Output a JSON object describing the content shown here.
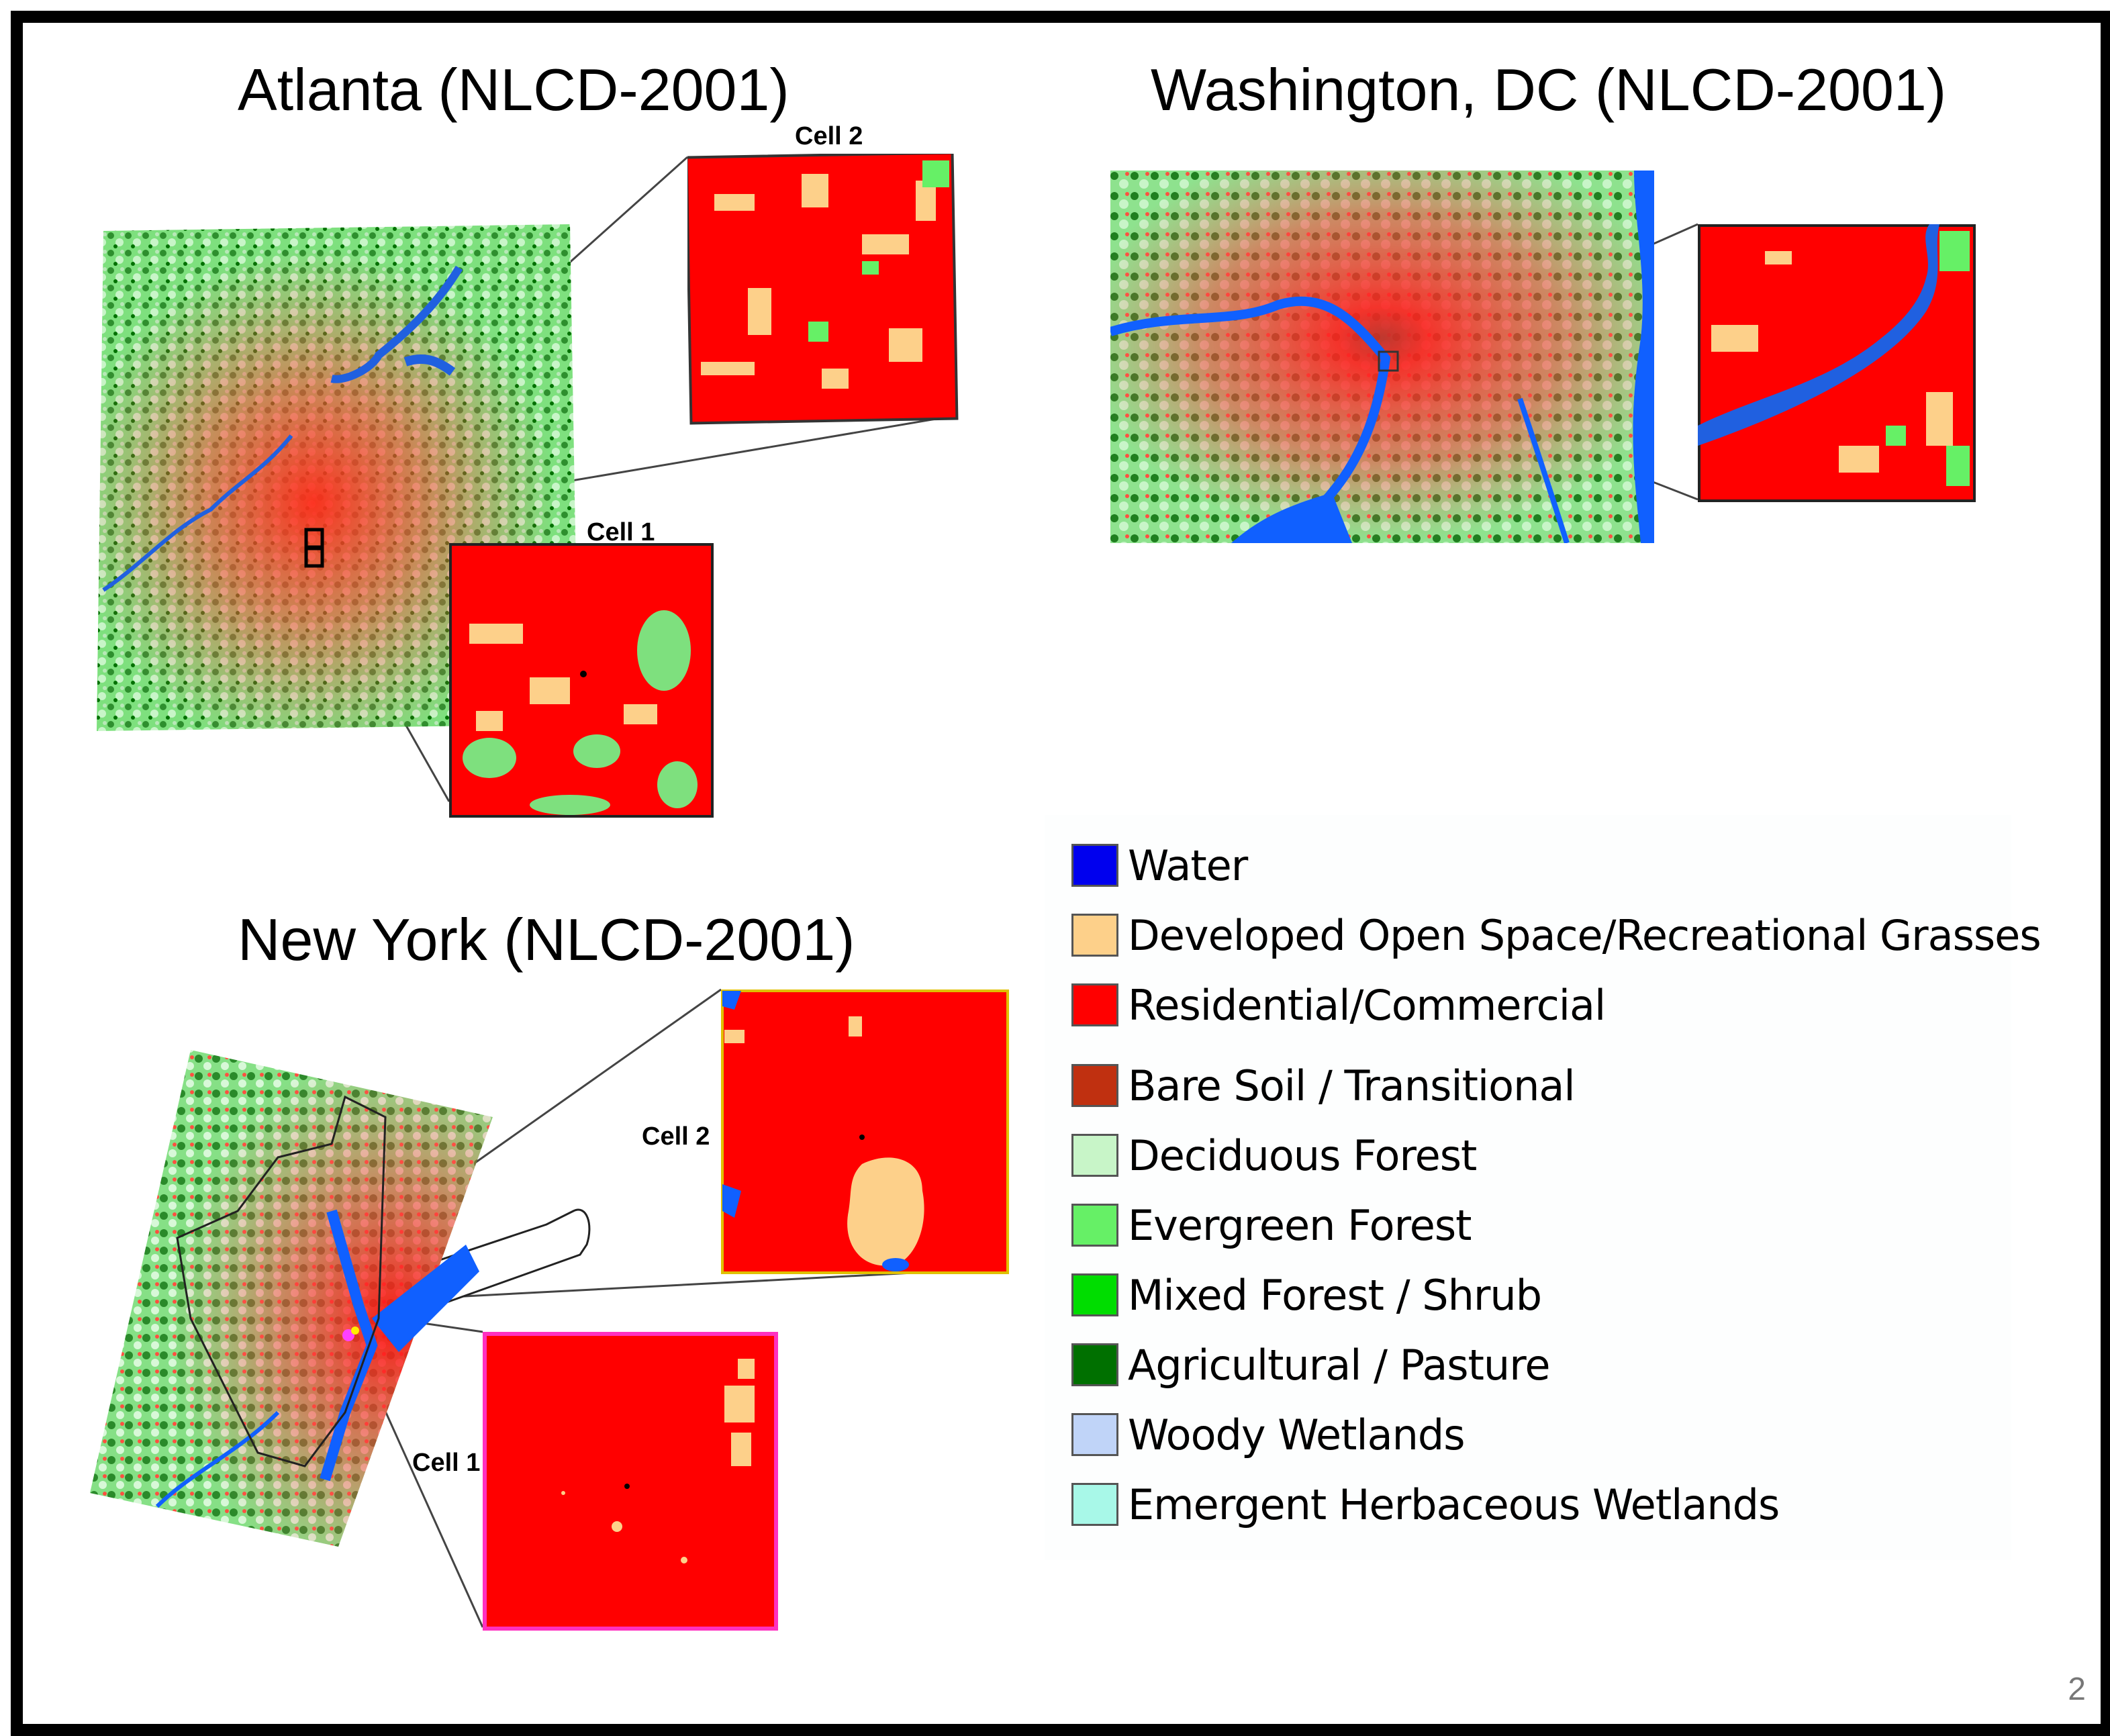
{
  "atlanta": {
    "title": "Atlanta (NLCD-2001)",
    "cell1_label": "Cell 1",
    "cell2_label": "Cell 2"
  },
  "washington": {
    "title": "Washington, DC (NLCD-2001)"
  },
  "newyork": {
    "title": "New York (NLCD-2001)",
    "cell1_label": "Cell 1",
    "cell2_label": "Cell 2"
  },
  "legend": {
    "items": [
      {
        "label": "Water",
        "color": "#0000ee"
      },
      {
        "label": "Developed Open Space/Recreational Grasses",
        "color": "#fdd08a"
      },
      {
        "label": "Residential/Commercial",
        "color": "#ff0000"
      },
      {
        "label": "Bare Soil / Transitional",
        "color": "#c03010"
      },
      {
        "label": "Deciduous Forest",
        "color": "#c8f5c8"
      },
      {
        "label": "Evergreen Forest",
        "color": "#66f066"
      },
      {
        "label": "Mixed Forest / Shrub",
        "color": "#00dd00"
      },
      {
        "label": "Agricultural / Pasture",
        "color": "#007000"
      },
      {
        "label": "Woody Wetlands",
        "color": "#c0d4f8"
      },
      {
        "label": "Emergent Herbaceous Wetlands",
        "color": "#a8f8e8"
      }
    ]
  },
  "page_number": "2"
}
